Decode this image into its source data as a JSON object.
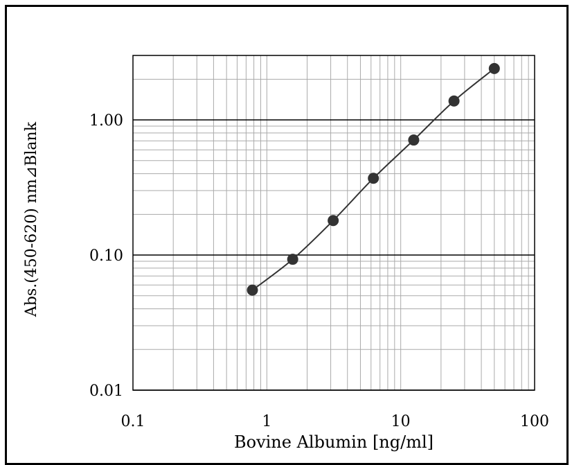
{
  "chart_data": {
    "type": "scatter",
    "title": "",
    "xlabel": "Bovine Albumin [ng/ml]",
    "ylabel": "Abs.(450-620) nm⊿Blank",
    "x_scale": "log",
    "y_scale": "log",
    "xlim": [
      0.1,
      100
    ],
    "ylim": [
      0.01,
      3
    ],
    "x_ticks": [
      {
        "value": 0.1,
        "label": "0.1"
      },
      {
        "value": 1,
        "label": "1"
      },
      {
        "value": 10,
        "label": "10"
      },
      {
        "value": 100,
        "label": "100"
      }
    ],
    "y_ticks": [
      {
        "value": 0.01,
        "label": "0.01"
      },
      {
        "value": 0.1,
        "label": "0.10"
      },
      {
        "value": 1,
        "label": "1.00"
      }
    ],
    "grid": true,
    "legend": "none",
    "marker_color": "#333333",
    "line_color": "#333333",
    "series": [
      {
        "x": [
          0.78,
          1.56,
          3.13,
          6.25,
          12.5,
          25,
          50
        ],
        "y": [
          0.055,
          0.093,
          0.18,
          0.37,
          0.71,
          1.38,
          2.4
        ]
      }
    ]
  }
}
